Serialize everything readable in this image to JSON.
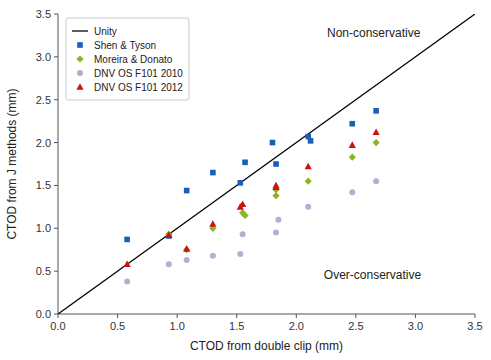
{
  "chart_data": {
    "type": "scatter",
    "xlabel": "CTOD from double clip (mm)",
    "ylabel": "CTOD from J methods (mm)",
    "xlim": [
      0,
      3.5
    ],
    "ylim": [
      0,
      3.5
    ],
    "xticks": [
      {
        "value": 0,
        "label": "0.0"
      },
      0.5,
      {
        "value": 1,
        "label": "1.0"
      },
      1.5,
      {
        "value": 2,
        "label": "2.0"
      },
      2.5,
      {
        "value": 3,
        "label": "3.0"
      },
      3.5
    ],
    "yticks": [
      {
        "value": 0,
        "label": "0.0"
      },
      0.5,
      {
        "value": 1,
        "label": "1.0"
      },
      1.5,
      {
        "value": 2,
        "label": "2.0"
      },
      2.5,
      {
        "value": 3,
        "label": "3.0"
      },
      3.5
    ],
    "grid": false,
    "legend": "upper left",
    "annotations": [
      "Non-conservative",
      "Over-conservative"
    ],
    "series": [
      {
        "name": "Unity",
        "type": "line",
        "line_style": "solid",
        "color": "#000000",
        "x": [
          0,
          3.5
        ],
        "values": [
          0,
          3.5
        ]
      },
      {
        "name": "Shen & Tyson",
        "type": "scatter",
        "marker": "square",
        "color": "#1a5eb8",
        "x": [
          0.58,
          0.93,
          1.08,
          1.3,
          1.53,
          1.57,
          1.8,
          1.83,
          2.1,
          2.12,
          2.47,
          2.67
        ],
        "values": [
          0.87,
          0.91,
          1.44,
          1.65,
          1.53,
          1.77,
          2.0,
          1.75,
          2.07,
          2.02,
          2.22,
          2.37
        ]
      },
      {
        "name": "Moreira & Donato",
        "type": "scatter",
        "marker": "diamond",
        "color": "#8ab520",
        "x": [
          0.93,
          1.08,
          1.3,
          1.55,
          1.57,
          1.83,
          1.83,
          2.1,
          2.47,
          2.67
        ],
        "values": [
          0.93,
          0.75,
          1.0,
          1.18,
          1.15,
          1.38,
          1.45,
          1.55,
          1.83,
          2.0
        ]
      },
      {
        "name": "DNV OS F101 2010",
        "type": "scatter",
        "marker": "circle",
        "color": "#b8acd4",
        "x": [
          0.58,
          0.93,
          1.08,
          1.3,
          1.53,
          1.55,
          1.83,
          1.85,
          2.1,
          2.47,
          2.67
        ],
        "values": [
          0.38,
          0.58,
          0.63,
          0.68,
          0.7,
          0.93,
          0.95,
          1.1,
          1.25,
          1.42,
          1.55
        ]
      },
      {
        "name": "DNV OS F101 2012",
        "type": "scatter",
        "marker": "triangle",
        "color": "#cc1111",
        "x": [
          0.58,
          0.93,
          1.08,
          1.3,
          1.53,
          1.55,
          1.83,
          1.83,
          2.1,
          2.47,
          2.67
        ],
        "values": [
          0.58,
          0.92,
          0.76,
          1.05,
          1.25,
          1.28,
          1.48,
          1.5,
          1.72,
          1.97,
          2.12
        ]
      }
    ]
  }
}
